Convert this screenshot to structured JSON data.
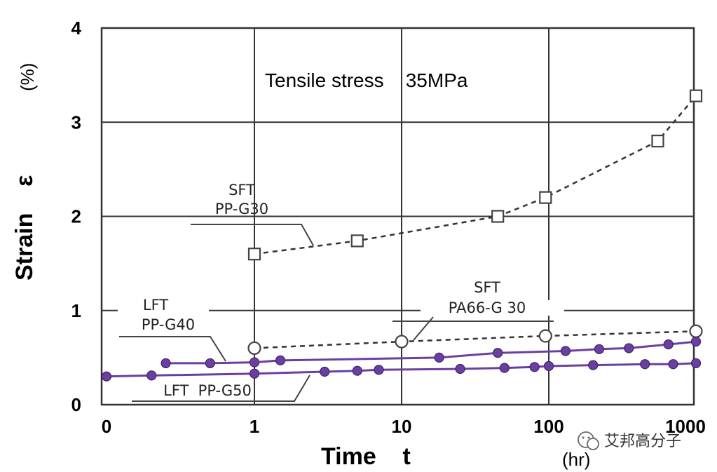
{
  "chart_data": {
    "type": "line",
    "title": "Tensile stress    35MPa",
    "xlabel": "Time    t",
    "xunit": "(hr)",
    "ylabel": "Strain    ε",
    "yunit": "(%)",
    "x_scale": "log",
    "x_ticks": [
      "0",
      "1",
      "10",
      "100",
      "1000"
    ],
    "y_ticks": [
      "0",
      "1",
      "2",
      "3",
      "4"
    ],
    "ylim": [
      0,
      4
    ],
    "xlim": [
      0.01,
      1000
    ],
    "grid": true,
    "series": [
      {
        "name": "SFT PP-G30",
        "label_lines": [
          "SFT",
          "PP-G30"
        ],
        "style": "dashed",
        "marker": "square",
        "color": "#333333",
        "x": [
          1,
          5,
          45,
          95,
          550,
          1000
        ],
        "y": [
          1.6,
          1.74,
          2.0,
          2.2,
          2.8,
          3.28
        ]
      },
      {
        "name": "SFT PA66-G30",
        "label_lines": [
          "SFT",
          "PA66-G 30"
        ],
        "style": "dashed",
        "marker": "circle",
        "color": "#333333",
        "x": [
          1,
          10,
          95,
          1000
        ],
        "y": [
          0.6,
          0.67,
          0.73,
          0.78
        ]
      },
      {
        "name": "LFT PP-G40",
        "label_lines": [
          "LFT",
          "PP-G40"
        ],
        "style": "solid",
        "marker": "dot",
        "color": "#6a3fa0",
        "x": [
          0.25,
          0.5,
          1,
          1.5,
          18,
          45,
          130,
          220,
          350,
          650,
          1000
        ],
        "y": [
          0.44,
          0.44,
          0.45,
          0.47,
          0.5,
          0.55,
          0.57,
          0.59,
          0.6,
          0.64,
          0.67
        ]
      },
      {
        "name": "LFT PP-G50",
        "label_lines": [
          "LFT  PP-G50"
        ],
        "style": "solid",
        "marker": "dot",
        "color": "#6a3fa0",
        "x": [
          0.01,
          0.2,
          1,
          3,
          5,
          7,
          25,
          50,
          80,
          100,
          200,
          450,
          700,
          1000
        ],
        "y": [
          0.3,
          0.31,
          0.33,
          0.35,
          0.36,
          0.37,
          0.38,
          0.39,
          0.4,
          0.41,
          0.42,
          0.43,
          0.43,
          0.44
        ]
      }
    ]
  },
  "watermark": {
    "text": "艾邦高分子",
    "icon": "wechat-icon"
  }
}
